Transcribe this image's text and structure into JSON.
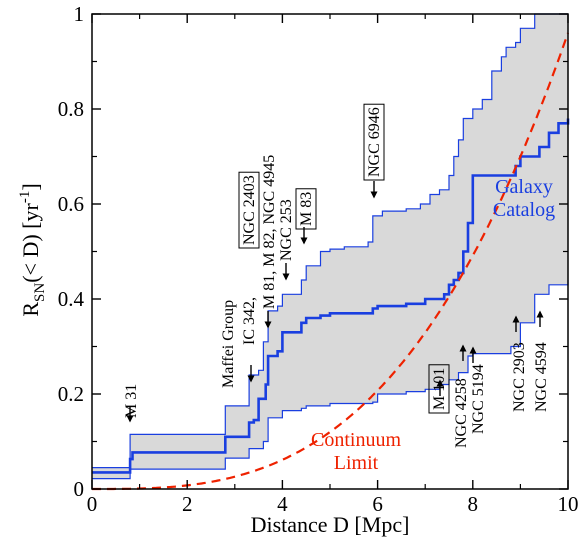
{
  "chart_data": {
    "type": "line",
    "xlabel": "Distance D [Mpc]",
    "ylabel_parts": {
      "main": "R",
      "sub": "SN",
      "rest": "(< D)  [yr",
      "sup": "-1",
      "close": "]"
    },
    "xlim": [
      0,
      10
    ],
    "ylim": [
      0,
      1
    ],
    "x_ticks": [
      0,
      2,
      4,
      6,
      8,
      10
    ],
    "y_ticks": [
      0,
      0.2,
      0.4,
      0.6,
      0.8,
      1
    ],
    "grid": false,
    "series": [
      {
        "name": "Galaxy Catalog",
        "role": "median",
        "color": "#1a3fe0",
        "steps": [
          [
            0,
            0.035
          ],
          [
            0.8,
            0.035
          ],
          [
            0.8,
            0.063
          ],
          [
            0.85,
            0.077
          ],
          [
            2.8,
            0.08
          ],
          [
            2.8,
            0.11
          ],
          [
            3.3,
            0.113
          ],
          [
            3.3,
            0.14
          ],
          [
            3.4,
            0.145
          ],
          [
            3.5,
            0.19
          ],
          [
            3.65,
            0.22
          ],
          [
            3.7,
            0.28
          ],
          [
            3.9,
            0.29
          ],
          [
            4.0,
            0.33
          ],
          [
            4.4,
            0.35
          ],
          [
            4.5,
            0.36
          ],
          [
            4.8,
            0.365
          ],
          [
            5.0,
            0.37
          ],
          [
            5.8,
            0.37
          ],
          [
            5.9,
            0.38
          ],
          [
            6.0,
            0.385
          ],
          [
            6.6,
            0.39
          ],
          [
            7.0,
            0.4
          ],
          [
            7.4,
            0.41
          ],
          [
            7.5,
            0.43
          ],
          [
            7.6,
            0.44
          ],
          [
            7.7,
            0.455
          ],
          [
            7.8,
            0.5
          ],
          [
            7.9,
            0.56
          ],
          [
            8.0,
            0.66
          ],
          [
            8.8,
            0.66
          ],
          [
            8.9,
            0.68
          ],
          [
            9.0,
            0.7
          ],
          [
            9.4,
            0.72
          ],
          [
            9.6,
            0.75
          ],
          [
            9.8,
            0.77
          ],
          [
            10,
            0.78
          ]
        ]
      },
      {
        "name": "",
        "role": "band-upper",
        "color": "#1a3fe0",
        "steps": [
          [
            0,
            0.045
          ],
          [
            0.8,
            0.045
          ],
          [
            0.8,
            0.115
          ],
          [
            2.8,
            0.115
          ],
          [
            2.8,
            0.175
          ],
          [
            3.3,
            0.175
          ],
          [
            3.3,
            0.24
          ],
          [
            3.5,
            0.25
          ],
          [
            3.6,
            0.31
          ],
          [
            3.7,
            0.375
          ],
          [
            3.9,
            0.385
          ],
          [
            4.0,
            0.41
          ],
          [
            4.4,
            0.44
          ],
          [
            4.5,
            0.47
          ],
          [
            4.8,
            0.5
          ],
          [
            5.0,
            0.505
          ],
          [
            5.3,
            0.51
          ],
          [
            5.8,
            0.52
          ],
          [
            5.9,
            0.575
          ],
          [
            6.1,
            0.585
          ],
          [
            6.6,
            0.59
          ],
          [
            6.9,
            0.6
          ],
          [
            7.1,
            0.62
          ],
          [
            7.3,
            0.63
          ],
          [
            7.5,
            0.66
          ],
          [
            7.6,
            0.7
          ],
          [
            7.7,
            0.735
          ],
          [
            7.8,
            0.78
          ],
          [
            8.0,
            0.8
          ],
          [
            8.2,
            0.82
          ],
          [
            8.4,
            0.88
          ],
          [
            8.6,
            0.91
          ],
          [
            8.7,
            0.93
          ],
          [
            8.9,
            0.94
          ],
          [
            9.0,
            0.97
          ],
          [
            9.3,
            1.0
          ],
          [
            10,
            1.0
          ]
        ]
      },
      {
        "name": "",
        "role": "band-lower",
        "color": "#1a3fe0",
        "steps": [
          [
            0,
            0.022
          ],
          [
            0.8,
            0.022
          ],
          [
            0.8,
            0.042
          ],
          [
            2.8,
            0.045
          ],
          [
            2.8,
            0.065
          ],
          [
            3.3,
            0.067
          ],
          [
            3.3,
            0.085
          ],
          [
            3.6,
            0.1
          ],
          [
            3.7,
            0.15
          ],
          [
            4.0,
            0.165
          ],
          [
            4.4,
            0.17
          ],
          [
            4.5,
            0.175
          ],
          [
            5.0,
            0.18
          ],
          [
            5.9,
            0.183
          ],
          [
            6.0,
            0.2
          ],
          [
            6.6,
            0.205
          ],
          [
            7.0,
            0.21
          ],
          [
            7.3,
            0.22
          ],
          [
            7.5,
            0.23
          ],
          [
            7.7,
            0.245
          ],
          [
            7.9,
            0.28
          ],
          [
            8.0,
            0.285
          ],
          [
            8.8,
            0.3
          ],
          [
            9.0,
            0.35
          ],
          [
            9.3,
            0.41
          ],
          [
            9.6,
            0.43
          ],
          [
            10,
            0.44
          ]
        ]
      },
      {
        "name": "Continuum Limit",
        "role": "continuum",
        "color": "#ee2200",
        "dashed": true,
        "cubic_coefficient": 0.00096
      }
    ],
    "band_fill": "#d9d9d9",
    "curve_labels": {
      "galaxy": [
        "Galaxy",
        "Catalog"
      ],
      "continuum": [
        "Continuum",
        "Limit"
      ]
    },
    "annotations": [
      {
        "text": "M 31",
        "boxed": false
      },
      {
        "text": "Maffei Group",
        "boxed": false
      },
      {
        "text": "IC 342,",
        "boxed": false
      },
      {
        "text": "NGC 2403",
        "boxed": true
      },
      {
        "text": "M 81, M 82, NGC 4945",
        "boxed": false
      },
      {
        "text": "NGC 253",
        "boxed": false
      },
      {
        "text": "M 83",
        "boxed": true
      },
      {
        "text": "NGC 6946",
        "boxed": true
      },
      {
        "text": "M 101",
        "boxed": true
      },
      {
        "text": "NGC 4258",
        "boxed": false
      },
      {
        "text": "NGC 5194",
        "boxed": false
      },
      {
        "text": "NGC 2903",
        "boxed": false
      },
      {
        "text": "NGC 4594",
        "boxed": false
      }
    ]
  }
}
